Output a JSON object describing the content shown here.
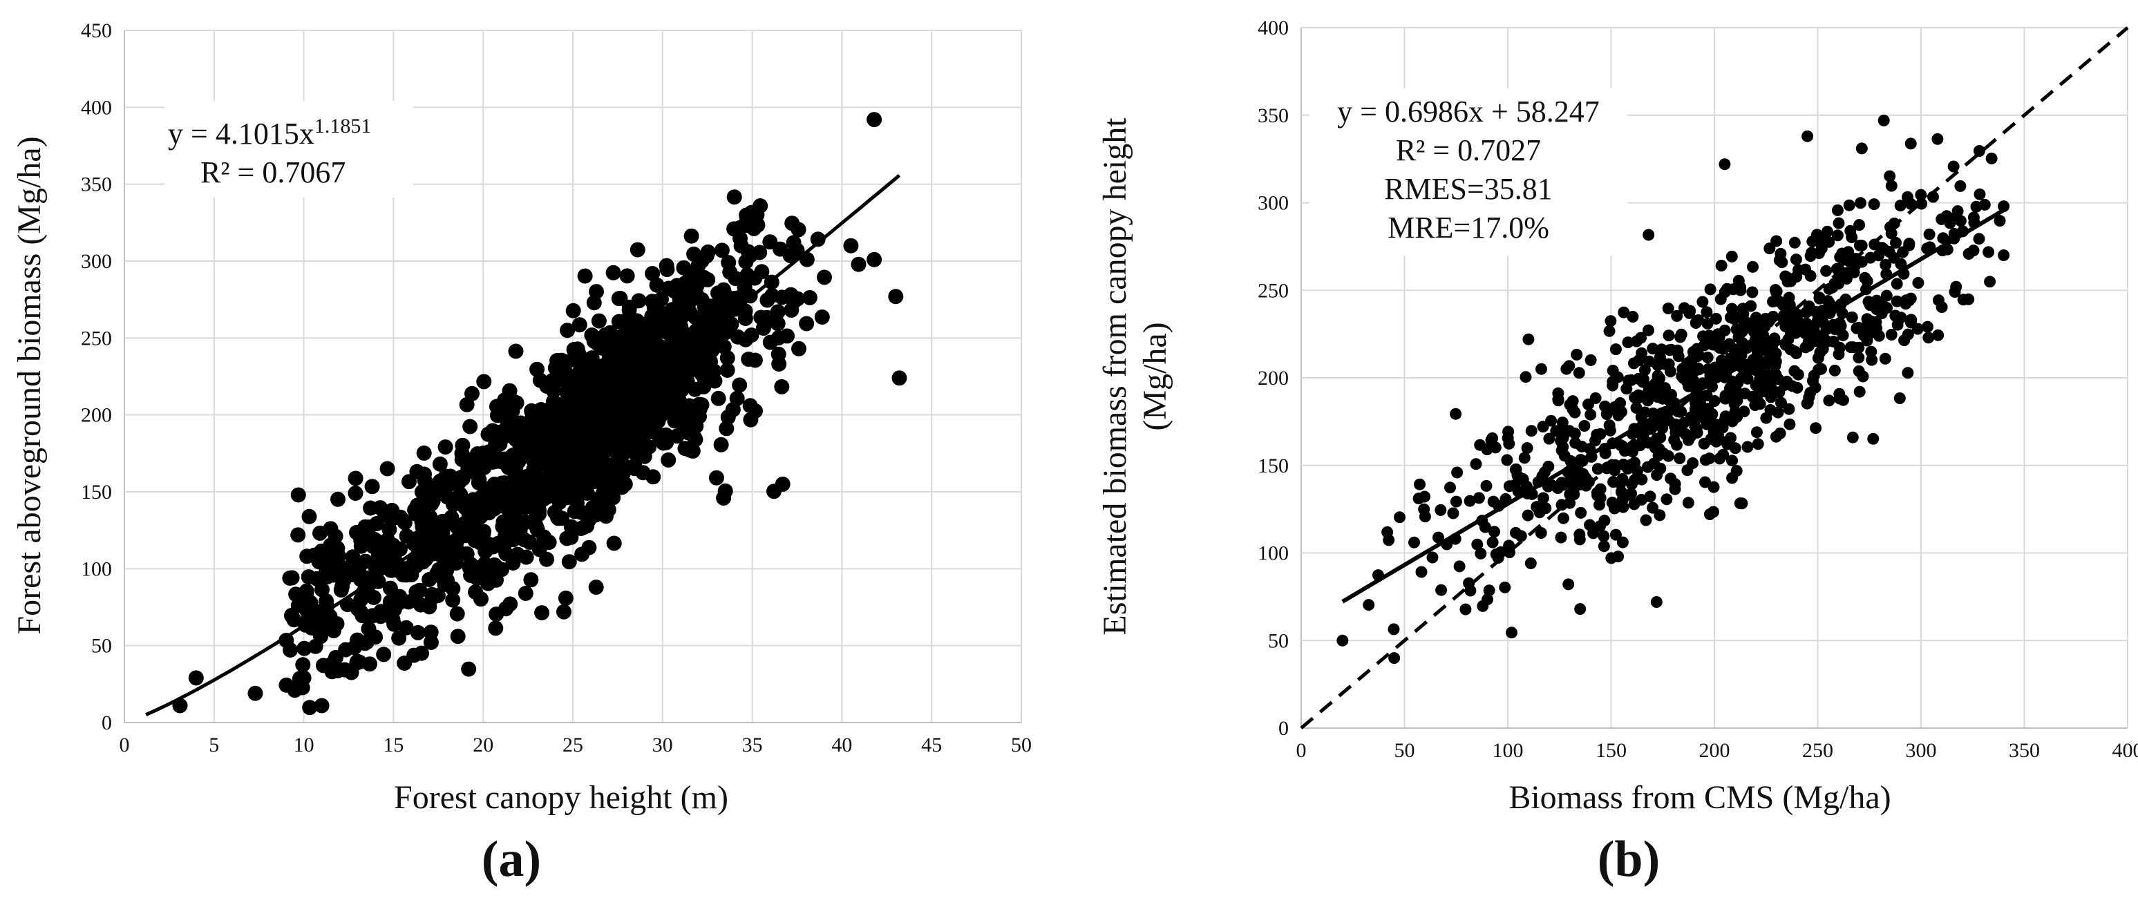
{
  "chart_data": [
    {
      "type": "scatter",
      "panel_label": "(a)",
      "xlabel": "Forest canopy height (m)",
      "ylabel": "Forest aboveground biomass (Mg/ha)",
      "xlim": [
        0,
        50
      ],
      "ylim": [
        0,
        450
      ],
      "xticks": [
        "0",
        "5",
        "10",
        "15",
        "20",
        "25",
        "30",
        "35",
        "40",
        "45",
        "50"
      ],
      "yticks": [
        "0",
        "50",
        "100",
        "150",
        "200",
        "250",
        "300",
        "350",
        "400",
        "450"
      ],
      "grid": true,
      "equation_line1": "y = 4.1015x",
      "equation_exponent": "1.1851",
      "equation_line2": "R² = 0.7067",
      "trendline": {
        "type": "power",
        "a": 4.1015,
        "b": 1.1851,
        "x_range": [
          1.2,
          43.2
        ]
      },
      "outliers": [
        [
          41.8,
          392
        ],
        [
          3.1,
          11
        ],
        [
          4.0,
          29
        ],
        [
          11.0,
          11
        ],
        [
          9.7,
          148
        ],
        [
          24.5,
          72
        ],
        [
          26.3,
          88
        ],
        [
          33.4,
          146
        ],
        [
          36.7,
          155
        ],
        [
          43.2,
          224
        ],
        [
          43.0,
          277
        ],
        [
          41.8,
          301
        ],
        [
          40.5,
          310
        ],
        [
          7.3,
          19
        ],
        [
          9.5,
          21
        ],
        [
          10.0,
          29
        ]
      ],
      "cloud_summary": {
        "n_points": 1500,
        "x_center": 26.5,
        "x_spread": 5.2,
        "y_trend": "4.1015*x^1.1851",
        "y_spread": 30
      }
    },
    {
      "type": "scatter",
      "panel_label": "(b)",
      "xlabel": "Biomass from CMS (Mg/ha)",
      "ylabel": "Estimated biomass from canopy height (Mg/ha)",
      "ylabel_line1": "Estimated biomass from canopy height",
      "ylabel_line2": "(Mg/ha)",
      "xlim": [
        0,
        400
      ],
      "ylim": [
        0,
        400
      ],
      "xticks": [
        "0",
        "50",
        "100",
        "150",
        "200",
        "250",
        "300",
        "350",
        "400"
      ],
      "yticks": [
        "0",
        "50",
        "100",
        "150",
        "200",
        "250",
        "300",
        "350",
        "400"
      ],
      "grid": true,
      "stats": [
        "y = 0.6986x + 58.247",
        "R² = 0.7027",
        "RMES=35.81",
        "MRE=17.0%"
      ],
      "trendline": {
        "type": "linear",
        "slope": 0.6986,
        "intercept": 58.247,
        "x_range": [
          20,
          340
        ]
      },
      "reference_line": {
        "type": "1:1",
        "style": "dashed",
        "x_range": [
          0,
          400
        ]
      },
      "outliers": [
        [
          282,
          347
        ],
        [
          45,
          40
        ],
        [
          20,
          50
        ],
        [
          135,
          68
        ],
        [
          172,
          72
        ],
        [
          267,
          166
        ],
        [
          340,
          270
        ],
        [
          340,
          298
        ],
        [
          205,
          322
        ],
        [
          245,
          338
        ],
        [
          110,
          222
        ]
      ],
      "cloud_summary": {
        "n_points": 900,
        "x_center": 205,
        "x_spread": 65,
        "y_trend": "0.6986*x+58.247",
        "y_spread": 28
      }
    }
  ]
}
